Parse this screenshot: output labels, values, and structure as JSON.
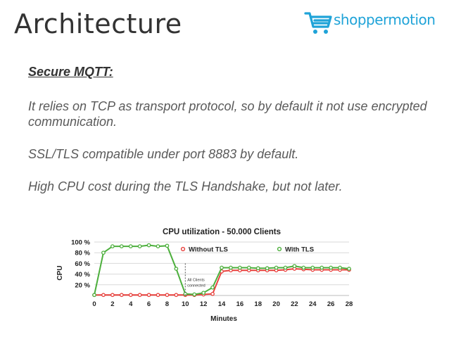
{
  "slide": {
    "title": "Architecture",
    "logo_text": "shoppermotion",
    "heading": "Secure MQTT:",
    "paragraphs": [
      "It relies on TCP as transport protocol, so by default it not use encrypted communication.",
      "SSL/TLS compatible under port 8883 by default.",
      "High CPU cost during the TLS Handshake, but not later."
    ]
  },
  "colors": {
    "brand": "#1fa3d8",
    "without_tls": "#e8413d",
    "with_tls": "#4caf3c"
  },
  "chart_data": {
    "type": "line",
    "title": "CPU utilization - 50.000 Clients",
    "xlabel": "Minutes",
    "ylabel": "CPU",
    "xlim": [
      0,
      28
    ],
    "ylim": [
      0,
      100
    ],
    "x_ticks": [
      "0",
      "2",
      "4",
      "6",
      "8",
      "10",
      "12",
      "14",
      "16",
      "18",
      "20",
      "22",
      "24",
      "26",
      "28"
    ],
    "y_ticks": [
      "20 %",
      "40 %",
      "60 %",
      "80 %",
      "100 %"
    ],
    "legend_position": "top",
    "grid": true,
    "annotation": {
      "text": [
        "All Clients",
        "connected"
      ],
      "x": 10
    },
    "x": [
      0,
      1,
      2,
      3,
      4,
      5,
      6,
      7,
      8,
      9,
      10,
      11,
      12,
      13,
      14,
      15,
      16,
      17,
      18,
      19,
      20,
      21,
      22,
      23,
      24,
      25,
      26,
      27,
      28
    ],
    "series": [
      {
        "name": "Without TLS",
        "color": "#e8413d",
        "values": [
          1,
          1,
          1,
          1,
          1,
          1,
          1,
          1,
          1,
          1,
          1,
          1,
          2,
          3,
          45,
          47,
          47,
          47,
          47,
          47,
          47,
          48,
          50,
          49,
          48,
          48,
          48,
          48,
          48
        ]
      },
      {
        "name": "With TLS",
        "color": "#4caf3c",
        "values": [
          1,
          80,
          92,
          92,
          92,
          92,
          94,
          92,
          93,
          50,
          3,
          2,
          5,
          15,
          52,
          52,
          52,
          52,
          51,
          51,
          52,
          52,
          55,
          52,
          52,
          52,
          52,
          52,
          50
        ]
      }
    ]
  }
}
